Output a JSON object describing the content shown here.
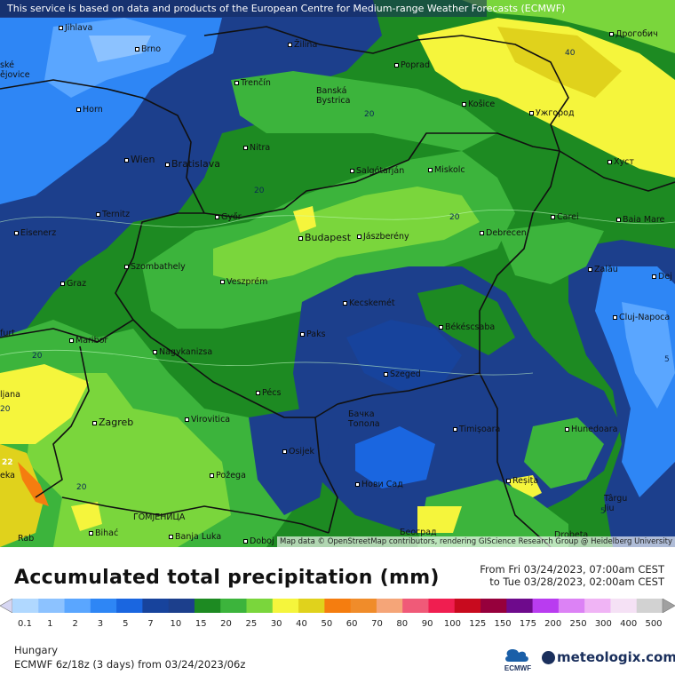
{
  "header": {
    "disclaimer": "This service is based on data and products of the European Centre for Medium-range Weather Forecasts (ECMWF)"
  },
  "map": {
    "attribution": "Map data © OpenStreetMap contributors, rendering GIScience Research Group @ Heidelberg University",
    "cities": [
      {
        "id": "jihlava",
        "label": "Jihlava"
      },
      {
        "id": "brno",
        "label": "Brno"
      },
      {
        "id": "zilina",
        "label": "Žilina"
      },
      {
        "id": "poprad",
        "label": "Poprad"
      },
      {
        "id": "drohobych",
        "label": "Дрогобич"
      },
      {
        "id": "ceske-budejovice",
        "label": "ské\nějovice"
      },
      {
        "id": "trencin",
        "label": "Trenčín"
      },
      {
        "id": "banska-bystrica",
        "label": "Banská\nBystrica"
      },
      {
        "id": "kosice",
        "label": "Košice"
      },
      {
        "id": "uzhhorod",
        "label": "Ужгород"
      },
      {
        "id": "horn",
        "label": "Horn"
      },
      {
        "id": "nitra",
        "label": "Nitra"
      },
      {
        "id": "wien",
        "label": "Wien"
      },
      {
        "id": "bratislava",
        "label": "Bratislava"
      },
      {
        "id": "salgotarjan",
        "label": "Salgótarján"
      },
      {
        "id": "miskolc",
        "label": "Miskolc"
      },
      {
        "id": "khust",
        "label": "Хуст"
      },
      {
        "id": "ternitz",
        "label": "Ternitz"
      },
      {
        "id": "gyor",
        "label": "Győr"
      },
      {
        "id": "carei",
        "label": "Carei"
      },
      {
        "id": "baia-mare",
        "label": "Baia Mare"
      },
      {
        "id": "eisenerz",
        "label": "Eisenerz"
      },
      {
        "id": "budapest",
        "label": "Budapest"
      },
      {
        "id": "jaszbereny",
        "label": "Jászberény"
      },
      {
        "id": "debrecen",
        "label": "Debrecen"
      },
      {
        "id": "szombathely",
        "label": "Szombathely"
      },
      {
        "id": "zalau",
        "label": "Zalău"
      },
      {
        "id": "graz",
        "label": "Graz"
      },
      {
        "id": "veszprem",
        "label": "Veszprém"
      },
      {
        "id": "dej",
        "label": "Dej"
      },
      {
        "id": "kecskemet",
        "label": "Kecskemét"
      },
      {
        "id": "cluj-napoca",
        "label": "Cluj-Napoca"
      },
      {
        "id": "furt",
        "label": "furt"
      },
      {
        "id": "maribor",
        "label": "Maribor"
      },
      {
        "id": "paks",
        "label": "Paks"
      },
      {
        "id": "bekescsaba",
        "label": "Békéscsaba"
      },
      {
        "id": "nagykanizsa",
        "label": "Nagykanizsa"
      },
      {
        "id": "szeged",
        "label": "Szeged"
      },
      {
        "id": "ljubljana",
        "label": "ljana"
      },
      {
        "id": "pecs",
        "label": "Pécs"
      },
      {
        "id": "zagreb",
        "label": "Zagreb"
      },
      {
        "id": "virovitica",
        "label": "Virovitica"
      },
      {
        "id": "backa-topola",
        "label": "Бачка\nТопола"
      },
      {
        "id": "timisoara",
        "label": "Timișoara"
      },
      {
        "id": "hunedoara",
        "label": "Hunedoara"
      },
      {
        "id": "osijek",
        "label": "Osijek"
      },
      {
        "id": "pozega",
        "label": "Požega"
      },
      {
        "id": "eka",
        "label": "eka"
      },
      {
        "id": "novi-sad",
        "label": "Нови Сад"
      },
      {
        "id": "resita",
        "label": "Reșița"
      },
      {
        "id": "targu-jiu",
        "label": "Târgu\nJiu"
      },
      {
        "id": "gomjenica",
        "label": "ГОМЈЕНИЦА"
      },
      {
        "id": "bihac",
        "label": "Bihać"
      },
      {
        "id": "banja-luka",
        "label": "Banja Luka"
      },
      {
        "id": "doboj",
        "label": "Doboj"
      },
      {
        "id": "beograd",
        "label": "Београд"
      },
      {
        "id": "drobeta",
        "label": "Drobeta"
      },
      {
        "id": "rab",
        "label": "Rab"
      }
    ],
    "isolines": [
      "20",
      "20",
      "20",
      "20",
      "20",
      "20",
      "40",
      "5",
      "5",
      "22"
    ]
  },
  "legend": {
    "title": "Accumulated total precipitation (mm)",
    "period_from": "From Fri 03/24/2023, 07:00am CEST",
    "period_to": "to Tue 03/28/2023, 02:00am CEST",
    "ticks": [
      "0.1",
      "1",
      "2",
      "3",
      "5",
      "7",
      "10",
      "15",
      "20",
      "25",
      "30",
      "40",
      "50",
      "60",
      "70",
      "80",
      "90",
      "100",
      "125",
      "150",
      "175",
      "200",
      "250",
      "300",
      "400",
      "500"
    ],
    "colors": [
      "#d6d6f2",
      "#b0d8ff",
      "#8cc2ff",
      "#5aa6ff",
      "#2e86f5",
      "#1a66e0",
      "#17439c",
      "#1c3f8c",
      "#1d8a22",
      "#3cb43c",
      "#7ad63c",
      "#f5f53c",
      "#e0d21c",
      "#f57d0f",
      "#f08c2a",
      "#f5a578",
      "#f05a78",
      "#f01e50",
      "#c80a1e",
      "#96003c",
      "#6e0a8c",
      "#b93cf0",
      "#dc82f5",
      "#f0b4f5",
      "#f5e1f5",
      "#d2d2d2",
      "#a0a0a0"
    ],
    "region": "Hungary",
    "model": "ECMWF 6z/18z (3 days) from 03/24/2023/06z",
    "ecmwf_logo_text": "ECMWF",
    "brand": "meteologix.com"
  }
}
